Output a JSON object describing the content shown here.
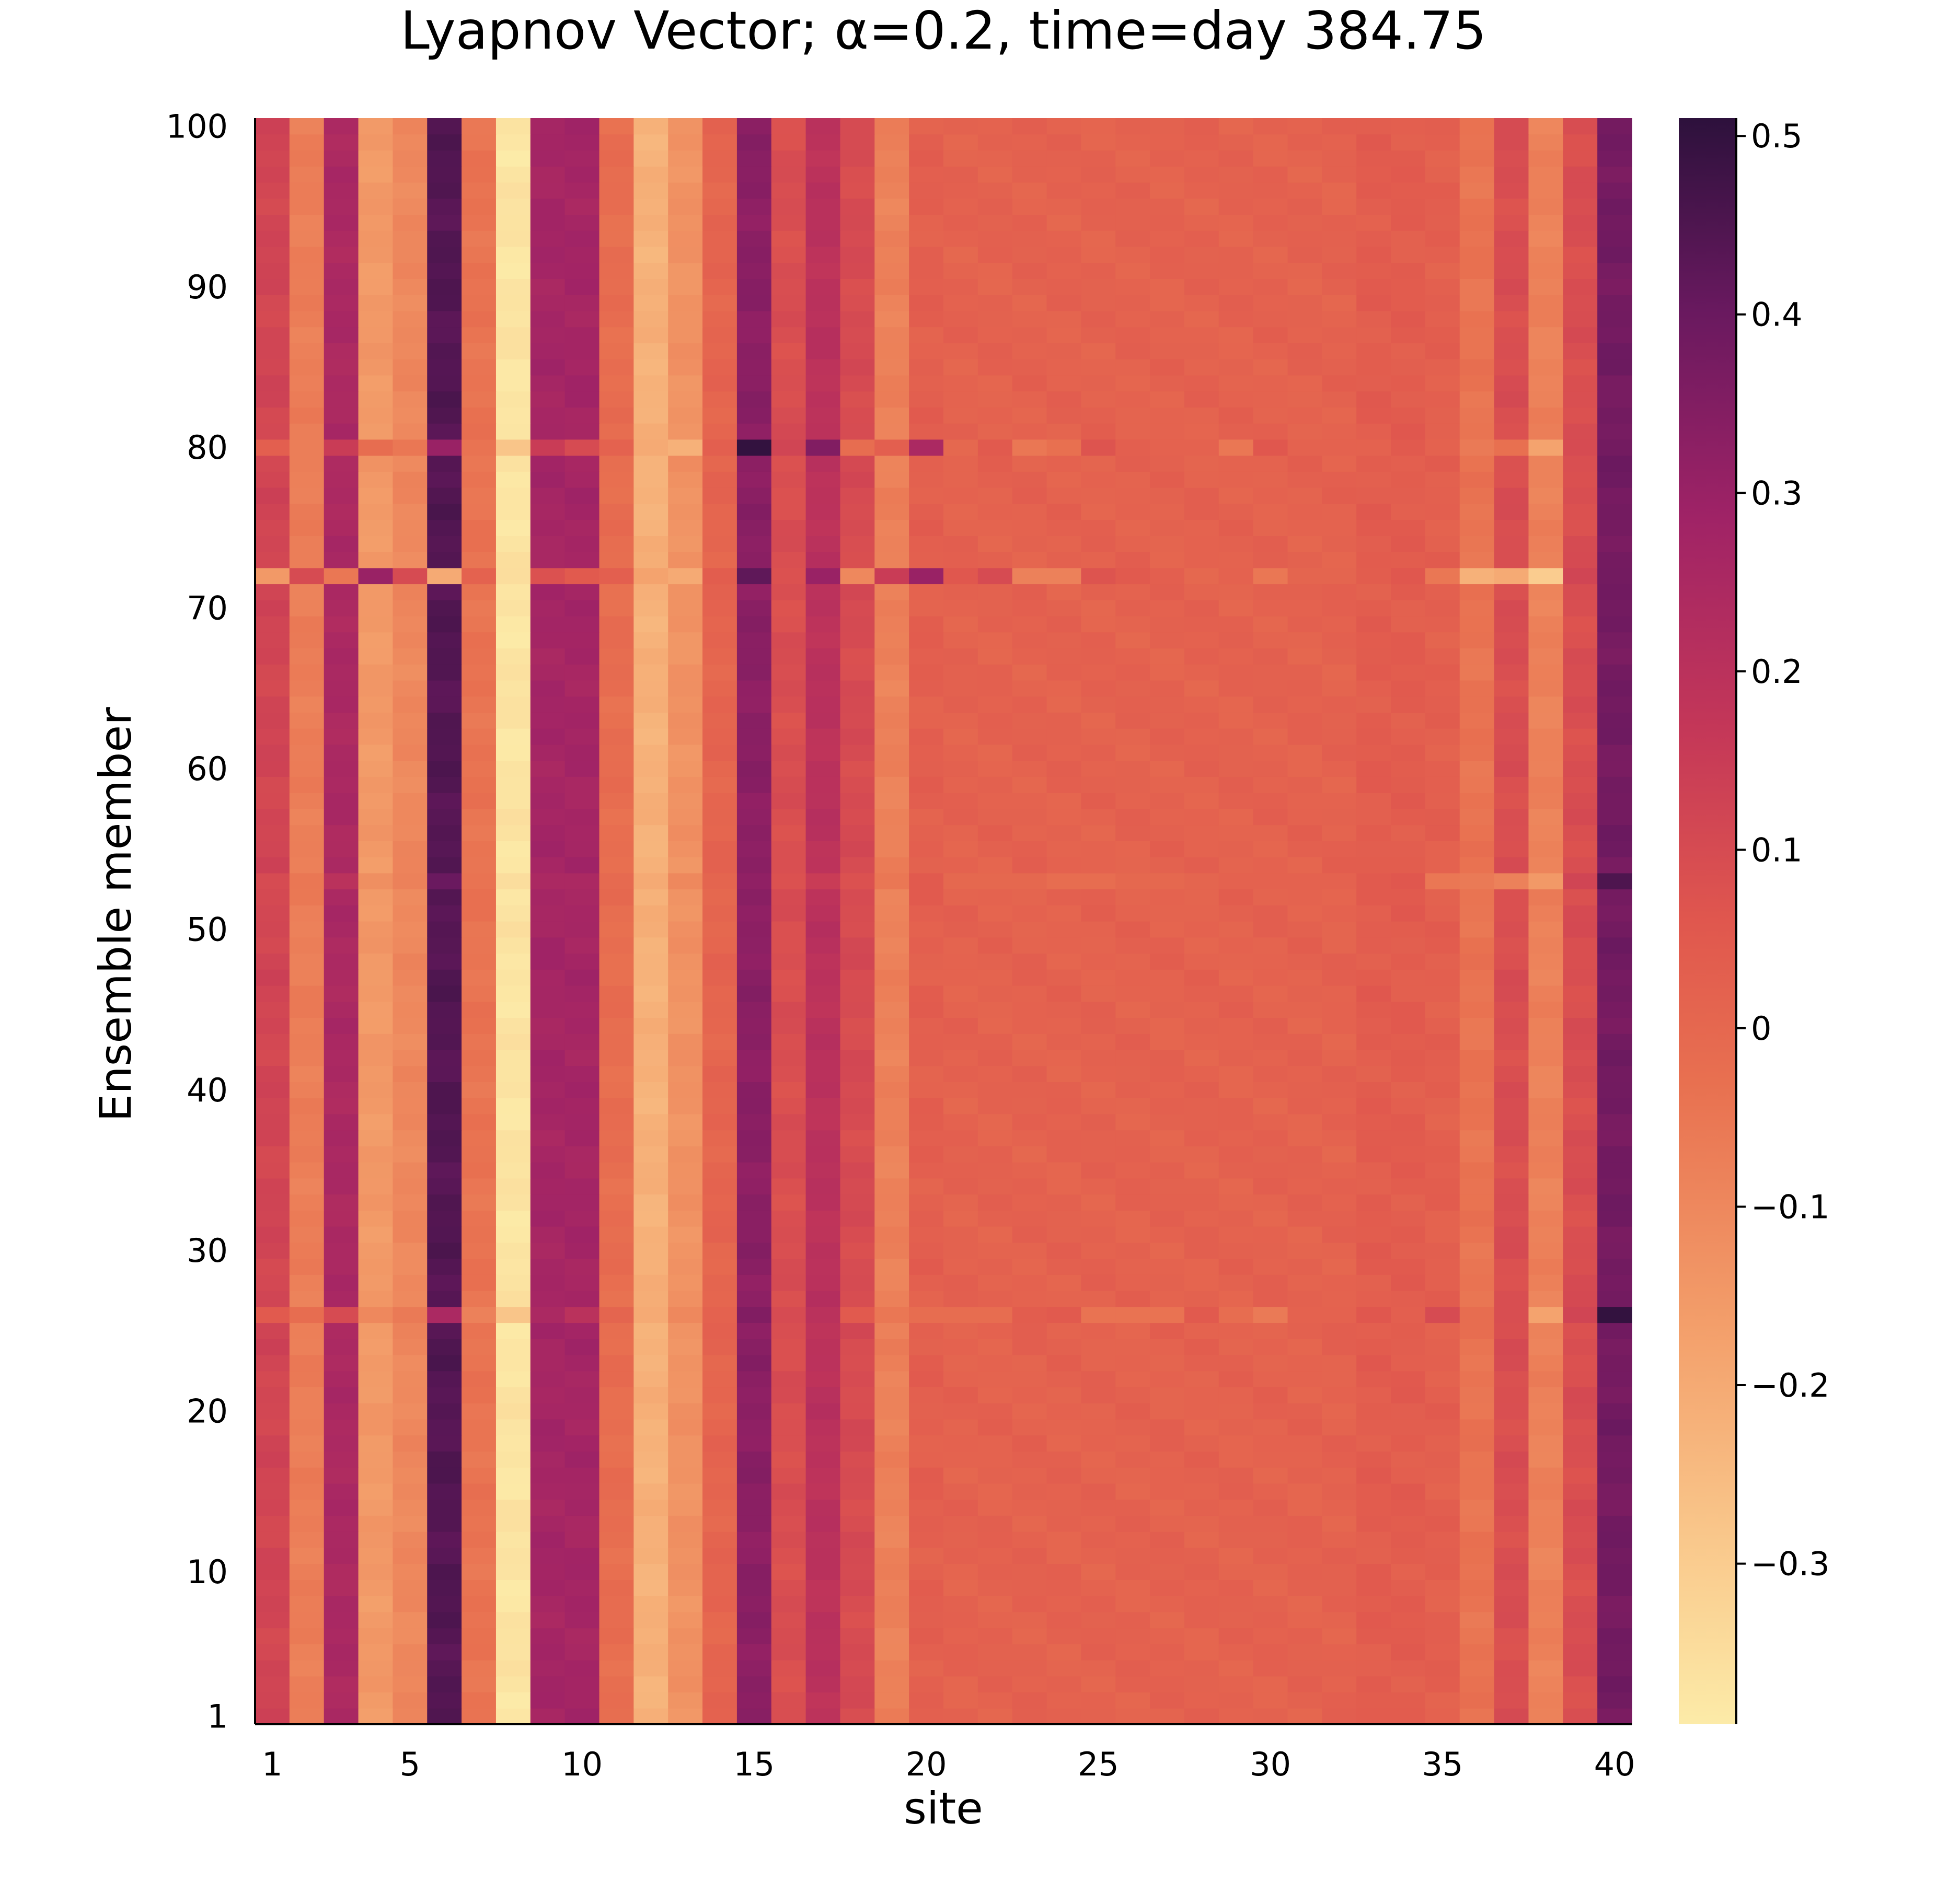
{
  "chart_data": {
    "type": "heatmap",
    "title": "Lyapnov Vector; α=0.2, time=day 384.75",
    "xlabel": "site",
    "ylabel": "Ensemble member",
    "x_range": [
      1,
      40
    ],
    "y_range": [
      1,
      100
    ],
    "x_ticks": [
      "1",
      "5",
      "10",
      "15",
      "20",
      "25",
      "30",
      "35",
      "40"
    ],
    "y_ticks": [
      "1",
      "10",
      "20",
      "30",
      "40",
      "50",
      "60",
      "70",
      "80",
      "90",
      "100"
    ],
    "colorbar": {
      "colormap": "magma (reversed)",
      "range": [
        -0.39,
        0.51
      ],
      "ticks": [
        "0.5",
        "0.4",
        "0.3",
        "0.2",
        "0.1",
        "0",
        "−0.1",
        "−0.2",
        "−0.3"
      ],
      "tick_values": [
        0.5,
        0.4,
        0.3,
        0.2,
        0.1,
        0,
        -0.1,
        -0.2,
        -0.3
      ]
    },
    "site_values_typical": [
      0.12,
      -0.07,
      0.25,
      -0.15,
      -0.1,
      0.44,
      -0.04,
      -0.37,
      0.27,
      0.27,
      -0.02,
      -0.22,
      -0.13,
      0.01,
      0.33,
      0.09,
      0.2,
      0.1,
      -0.08,
      0.03,
      0.02,
      0.02,
      0.02,
      0.02,
      0.02,
      0.02,
      0.02,
      0.02,
      0.02,
      0.02,
      0.02,
      0.02,
      0.04,
      0.04,
      0.03,
      -0.04,
      0.09,
      -0.08,
      0.09,
      0.38
    ],
    "anomalous_rows": [
      {
        "member": 72,
        "values": [
          -0.15,
          0.1,
          -0.05,
          0.3,
          0.1,
          -0.2,
          0.02,
          -0.35,
          0.08,
          0.05,
          0.03,
          -0.18,
          -0.2,
          0.04,
          0.42,
          0.08,
          0.3,
          -0.1,
          0.15,
          0.3,
          0.06,
          0.1,
          -0.08,
          -0.08,
          0.07,
          0.05,
          0.03,
          0.0,
          0.02,
          -0.05,
          0.01,
          0.01,
          0.04,
          0.06,
          -0.05,
          -0.22,
          -0.2,
          -0.3,
          0.12,
          0.38
        ]
      },
      {
        "member": 80,
        "values": [
          0.03,
          -0.07,
          0.15,
          -0.02,
          -0.05,
          0.3,
          -0.04,
          -0.28,
          0.15,
          0.1,
          0.02,
          -0.2,
          -0.22,
          0.03,
          0.5,
          0.12,
          0.35,
          -0.02,
          0.03,
          0.25,
          0.0,
          0.05,
          -0.05,
          -0.03,
          0.07,
          0.03,
          0.02,
          0.02,
          -0.05,
          0.06,
          0.02,
          0.02,
          0.02,
          0.05,
          0.02,
          -0.06,
          -0.03,
          -0.18,
          0.1,
          0.38
        ]
      },
      {
        "member": 26,
        "values": [
          0.05,
          -0.02,
          0.1,
          -0.1,
          -0.06,
          0.25,
          -0.08,
          -0.28,
          0.25,
          0.2,
          0.01,
          -0.2,
          -0.1,
          0.02,
          0.35,
          0.1,
          0.2,
          0.05,
          -0.05,
          -0.02,
          -0.02,
          -0.02,
          0.04,
          0.05,
          -0.04,
          -0.04,
          -0.04,
          0.05,
          -0.02,
          -0.06,
          0.02,
          0.02,
          0.06,
          0.03,
          0.1,
          -0.02,
          0.09,
          -0.18,
          0.12,
          0.5
        ]
      },
      {
        "member": 53,
        "values": [
          0.1,
          -0.05,
          0.2,
          -0.12,
          -0.08,
          0.4,
          -0.04,
          -0.35,
          0.25,
          0.25,
          -0.01,
          -0.2,
          -0.1,
          0.01,
          0.32,
          0.08,
          0.15,
          0.08,
          -0.05,
          0.05,
          0.0,
          0.0,
          0.0,
          -0.02,
          -0.02,
          0.0,
          0.0,
          0.01,
          0.02,
          0.02,
          0.02,
          0.02,
          0.05,
          0.06,
          -0.05,
          -0.06,
          -0.08,
          -0.15,
          0.12,
          0.45
        ]
      }
    ],
    "typical_row_variation": 0.02
  }
}
